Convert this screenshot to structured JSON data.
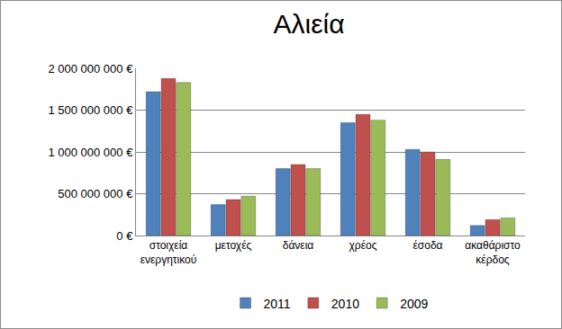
{
  "chart_data": {
    "type": "bar",
    "title": "Αλιεία",
    "categories": [
      "στοιχεία ενεργητικού",
      "μετοχές",
      "δάνεια",
      "χρέος",
      "έσοδα",
      "ακαθάριστο κέρδος"
    ],
    "series": [
      {
        "name": "2011",
        "color": "#4f81bd",
        "values": [
          1720000000,
          370000000,
          800000000,
          1350000000,
          1030000000,
          120000000
        ]
      },
      {
        "name": "2010",
        "color": "#c0504d",
        "values": [
          1880000000,
          430000000,
          850000000,
          1450000000,
          1000000000,
          190000000
        ]
      },
      {
        "name": "2009",
        "color": "#9bbb59",
        "values": [
          1830000000,
          470000000,
          800000000,
          1380000000,
          910000000,
          210000000
        ]
      }
    ],
    "ylim": [
      0,
      2000000000
    ],
    "yticks": [
      {
        "value": 0,
        "label": "0 €"
      },
      {
        "value": 500000000,
        "label": "500 000 000 €"
      },
      {
        "value": 1000000000,
        "label": "1 000 000 000 €"
      },
      {
        "value": 1500000000,
        "label": "1 500 000 000 €"
      },
      {
        "value": 2000000000,
        "label": "2 000 000 000 €"
      }
    ],
    "grid": true,
    "legend": "bottom"
  }
}
